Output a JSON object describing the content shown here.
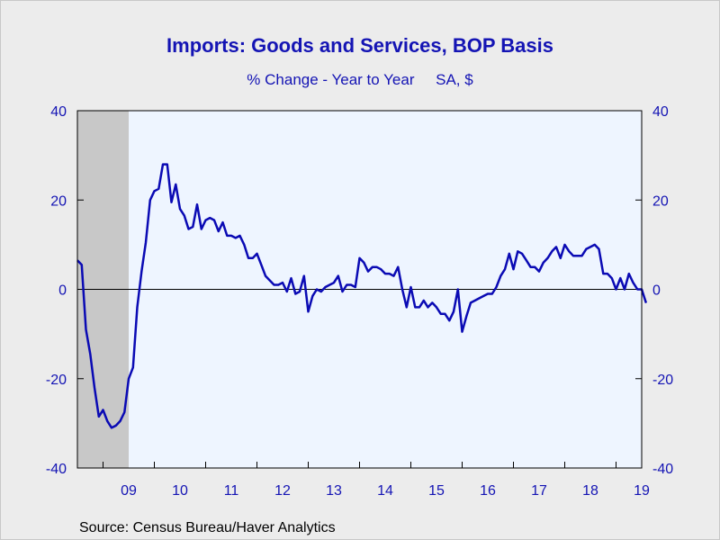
{
  "chart_data": {
    "type": "line",
    "title": "Imports: Goods and Services, BOP Basis",
    "subtitle": "% Change - Year to Year     SA, $",
    "source": "Source:  Census Bureau/Haver Analytics",
    "xlabel": "",
    "ylabel": "",
    "ylim": [
      -40,
      40
    ],
    "y_ticks": [
      -40,
      -20,
      0,
      20,
      40
    ],
    "y_tick_labels": [
      "-40",
      "-20",
      "0",
      "20",
      "40"
    ],
    "x_tick_labels": [
      "09",
      "10",
      "11",
      "12",
      "13",
      "14",
      "15",
      "16",
      "17",
      "18",
      "19"
    ],
    "x_range": [
      "2008-07",
      "2019-07"
    ],
    "recession_shading": {
      "start": "2008-07",
      "end": "2009-06",
      "color": "#c8c8c8"
    },
    "grid": false,
    "zero_line": true,
    "colors": {
      "line": "#0a0ab4",
      "plot_bg": "#eef5ff",
      "text": "#1414b4"
    },
    "series": [
      {
        "start": "2008-07",
        "values": [
          6.5,
          5.5,
          -9,
          -14.5,
          -22,
          -28.5,
          -27,
          -29.5,
          -31,
          -30.5,
          -29.5,
          -27.5,
          -20,
          -17.5,
          -4,
          4,
          10.5,
          20,
          22,
          22.5,
          28,
          28,
          19.5,
          23.5,
          18,
          16.5,
          13.5,
          14,
          19,
          13.5,
          15.5,
          16,
          15.5,
          13,
          15,
          12,
          12,
          11.5,
          12,
          10,
          7,
          7,
          8,
          5.5,
          3,
          2,
          1,
          1,
          1.5,
          -0.5,
          2.5,
          -1,
          -0.5,
          3,
          -5,
          -1.5,
          0,
          -0.5,
          0.5,
          1,
          1.5,
          3,
          -0.5,
          1,
          1,
          0.5,
          7,
          6,
          4,
          5,
          5,
          4.5,
          3.5,
          3.5,
          3,
          5,
          0,
          -4,
          0.5,
          -4,
          -4,
          -2.5,
          -4,
          -3,
          -4,
          -5.5,
          -5.5,
          -7,
          -5,
          0,
          -9.5,
          -6,
          -3,
          -2.5,
          -2,
          -1.5,
          -1,
          -1,
          0.5,
          3,
          4.5,
          8,
          4.5,
          8.5,
          8,
          6.5,
          5,
          5,
          4,
          6,
          7,
          8.5,
          9.5,
          7,
          10,
          8.5,
          7.5,
          7.5,
          7.5,
          9,
          9.5,
          10,
          9,
          3.5,
          3.5,
          2.5,
          0,
          2.5,
          0,
          3.5,
          1.5,
          0,
          0,
          -3
        ]
      }
    ]
  }
}
